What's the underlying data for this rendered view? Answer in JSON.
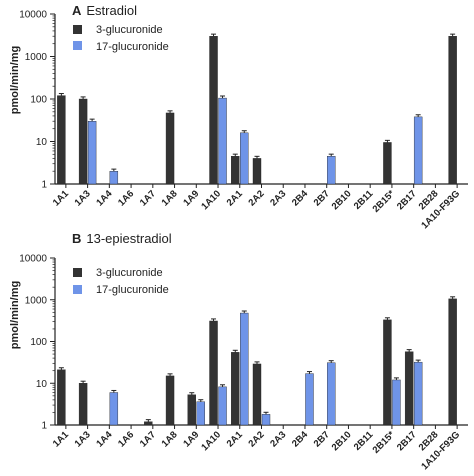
{
  "colors": {
    "series_3_gluc": "#333333",
    "series_17_gluc": "#6f94e8"
  },
  "chart_data": [
    {
      "type": "bar",
      "panel_letter": "A",
      "title": "Estradiol",
      "ylabel": "pmol/min/mg",
      "yscale": "log",
      "ylim": [
        1,
        10000
      ],
      "yticks": [
        "1",
        "10",
        "100",
        "1000",
        "10000"
      ],
      "legend_position": "top-left",
      "categories": [
        "1A1",
        "1A3",
        "1A4",
        "1A6",
        "1A7",
        "1A8",
        "1A9",
        "1A10",
        "2A1",
        "2A2",
        "2A3",
        "2B4",
        "2B7",
        "2B10",
        "2B11",
        "2B15*",
        "2B17",
        "2B28",
        "1A10-F93G"
      ],
      "series": [
        {
          "name": "3-glucuronide",
          "values": [
            120,
            100,
            null,
            null,
            null,
            47,
            null,
            3000,
            4.5,
            4,
            null,
            null,
            null,
            null,
            null,
            9.5,
            null,
            null,
            3000
          ]
        },
        {
          "name": "17-glucuronide",
          "values": [
            null,
            30,
            2,
            null,
            null,
            null,
            null,
            105,
            16,
            null,
            null,
            null,
            4.5,
            null,
            null,
            null,
            38,
            null,
            null
          ]
        }
      ]
    },
    {
      "type": "bar",
      "panel_letter": "B",
      "title": "13-epiestradiol",
      "ylabel": "pmol/min/mg",
      "yscale": "log",
      "ylim": [
        1,
        10000
      ],
      "yticks": [
        "1",
        "10",
        "100",
        "1000",
        "10000"
      ],
      "legend_position": "top-left",
      "categories": [
        "1A1",
        "1A3",
        "1A4",
        "1A6",
        "1A7",
        "1A8",
        "1A9",
        "1A10",
        "2A1",
        "2A2",
        "2A3",
        "2B4",
        "2B7",
        "2B10",
        "2B11",
        "2B15*",
        "2B17",
        "2B28",
        "1A10-F93G"
      ],
      "series": [
        {
          "name": "3-glucuronide",
          "values": [
            21,
            10,
            null,
            null,
            1.2,
            15,
            5.3,
            310,
            55,
            29,
            null,
            null,
            null,
            null,
            null,
            330,
            57,
            null,
            1050
          ]
        },
        {
          "name": "17-glucuronide",
          "values": [
            null,
            null,
            6,
            null,
            null,
            null,
            3.6,
            8.2,
            480,
            1.8,
            null,
            17,
            31,
            null,
            null,
            12,
            32,
            null,
            null
          ]
        }
      ]
    }
  ]
}
